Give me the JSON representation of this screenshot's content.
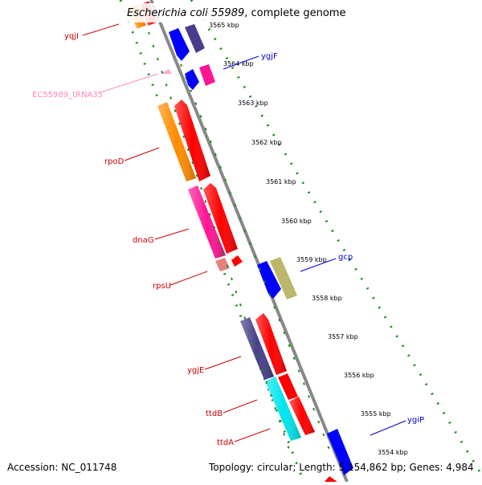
{
  "header": {
    "organism": "Escherichia coli 55989",
    "suffix": ", complete genome"
  },
  "footer": {
    "accession": "Accession: NC_011748",
    "summary": "Topology: circular; Length: 5,154,862 bp; Genes: 4,984"
  },
  "ticks": [
    {
      "label": "3565 kbp",
      "pos": 0
    },
    {
      "label": "3564 kbp",
      "pos": 1
    },
    {
      "label": "3563 kbp",
      "pos": 2
    },
    {
      "label": "3562 kbp",
      "pos": 3
    },
    {
      "label": "3561 kbp",
      "pos": 4
    },
    {
      "label": "3560 kbp",
      "pos": 5
    },
    {
      "label": "3559 kbp",
      "pos": 6
    },
    {
      "label": "3558 kbp",
      "pos": 7
    },
    {
      "label": "3557 kbp",
      "pos": 8
    },
    {
      "label": "3556 kbp",
      "pos": 9
    },
    {
      "label": "3555 kbp",
      "pos": 10
    },
    {
      "label": "3554 kbp",
      "pos": 11
    }
  ],
  "genes": [
    {
      "id": "yqjI-left",
      "label": "yqjI",
      "color": "#ff8c00",
      "strand": "left-2"
    },
    {
      "id": "yqjI-red",
      "label": "",
      "color": "#ff0000",
      "strand": "left-1"
    },
    {
      "id": "ygjF",
      "label": "ygjF",
      "color": "#0000ff",
      "strand": "right-1"
    },
    {
      "id": "tRNA35",
      "label": "EC55989_tRNA35",
      "color": "#ff99cc",
      "strand": "left-2"
    },
    {
      "id": "rpoD",
      "label": "rpoD",
      "color": "#ff8c00",
      "strand": "left-2"
    },
    {
      "id": "dnaG",
      "label": "dnaG",
      "color": "#ff1493",
      "strand": "left-2"
    },
    {
      "id": "rpsU",
      "label": "rpsU",
      "color": "#e07070",
      "strand": "left-2"
    },
    {
      "id": "gcp",
      "label": "gcp",
      "color": "#bdb76b",
      "strand": "right-2"
    },
    {
      "id": "ygjE",
      "label": "ygjE",
      "color": "#483d8b",
      "strand": "left-2"
    },
    {
      "id": "ttdB",
      "label": "ttdB",
      "color": "#00ffff",
      "strand": "left-2"
    },
    {
      "id": "ttdA",
      "label": "ttdA",
      "color": "#ff0000",
      "strand": "left-1"
    },
    {
      "id": "ygiP",
      "label": "ygiP",
      "color": "#0000ff",
      "strand": "right-1"
    }
  ],
  "colors": {
    "backbone": "#888888",
    "tick_dots": "#1e8c1e",
    "left_label": "#cc0000",
    "right_label": "#0000cc",
    "trna_label": "#ff88bb"
  }
}
